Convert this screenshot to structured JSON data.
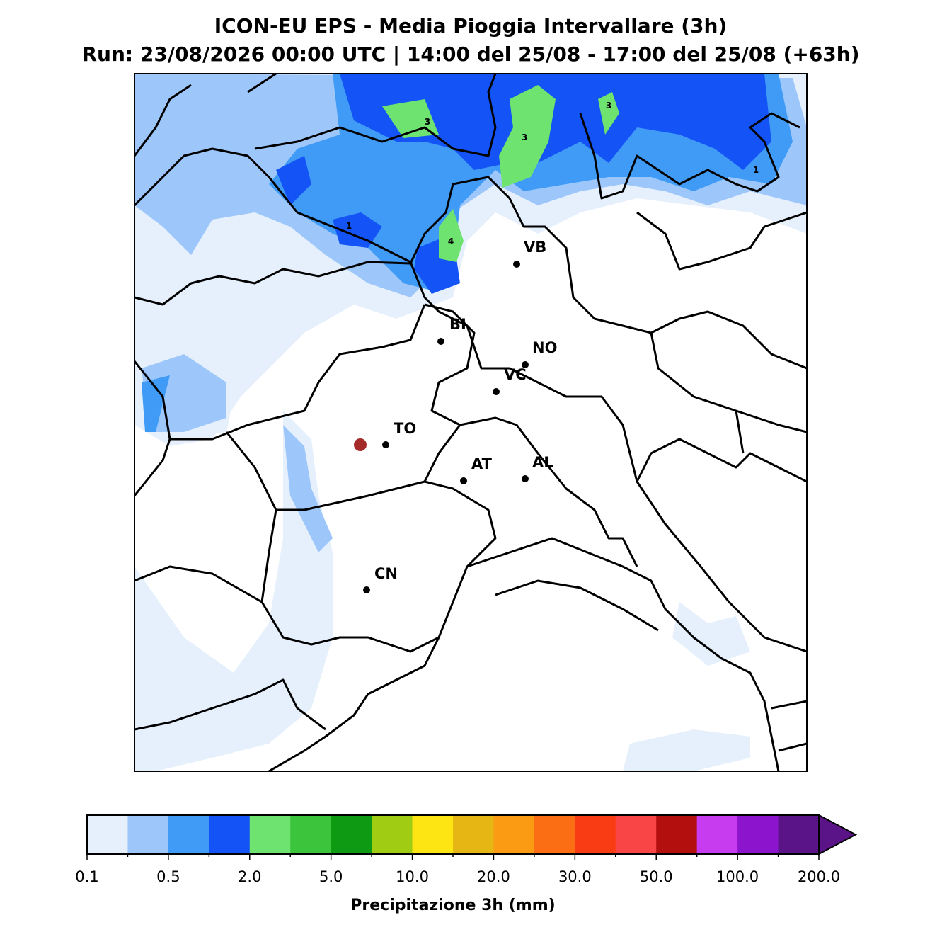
{
  "header": {
    "title": "ICON-EU EPS - Media Pioggia Intervallare (3h)",
    "subtitle": "Run: 23/08/2026 00:00 UTC | 14:00 del 25/08 - 17:00 del 25/08 (+63h)"
  },
  "cities": [
    "VB",
    "BI",
    "NO",
    "VC",
    "TO",
    "AT",
    "AL",
    "CN"
  ],
  "contour_labels": [
    "3",
    "3",
    "3",
    "1",
    "1",
    "4"
  ],
  "colorbar": {
    "label": "Precipitazione 3h (mm)",
    "colors": [
      "#e5f0fc",
      "#9dc7fa",
      "#3f9bf5",
      "#1453f5",
      "#6ee36f",
      "#3dc43d",
      "#0f9a14",
      "#a0cc14",
      "#fde514",
      "#e6b614",
      "#fb9b14",
      "#fb6e14",
      "#fa3c14",
      "#fa4546",
      "#b40f0f",
      "#c83cf0",
      "#8b14cc",
      "#5a1488"
    ],
    "tick_labels": [
      "0.1",
      "0.5",
      "2.0",
      "5.0",
      "10.0",
      "20.0",
      "30.0",
      "50.0",
      "100.0",
      "200.0"
    ]
  }
}
